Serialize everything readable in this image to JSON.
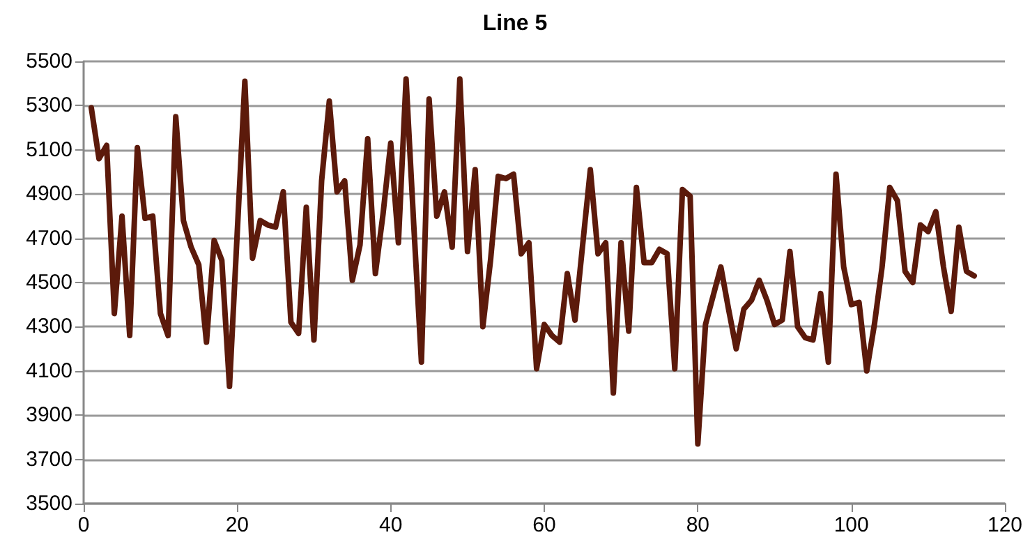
{
  "chart_data": {
    "type": "line",
    "title": "Line 5",
    "x": [
      1,
      2,
      3,
      4,
      5,
      6,
      7,
      8,
      9,
      10,
      11,
      12,
      13,
      14,
      15,
      16,
      17,
      18,
      19,
      20,
      21,
      22,
      23,
      24,
      25,
      26,
      27,
      28,
      29,
      30,
      31,
      32,
      33,
      34,
      35,
      36,
      37,
      38,
      39,
      40,
      41,
      42,
      43,
      44,
      45,
      46,
      47,
      48,
      49,
      50,
      51,
      52,
      53,
      54,
      55,
      56,
      57,
      58,
      59,
      60,
      61,
      62,
      63,
      64,
      65,
      66,
      67,
      68,
      69,
      70,
      71,
      72,
      73,
      74,
      75,
      76,
      77,
      78,
      79,
      80,
      81,
      82,
      83,
      84,
      85,
      86,
      87,
      88,
      89,
      90,
      91,
      92,
      93,
      94,
      95,
      96,
      97,
      98,
      99,
      100,
      101,
      102,
      103,
      104,
      105,
      106,
      107,
      108,
      109,
      110,
      111,
      112,
      113,
      114,
      115,
      116
    ],
    "series": [
      {
        "color": "#5c1a0b",
        "values": [
          5290,
          5060,
          5120,
          4360,
          4800,
          4260,
          5110,
          4790,
          4800,
          4360,
          4260,
          5250,
          4780,
          4660,
          4580,
          4230,
          4690,
          4600,
          4030,
          4720,
          5410,
          4610,
          4780,
          4760,
          4750,
          4910,
          4320,
          4270,
          4840,
          4240,
          4960,
          5320,
          4910,
          4960,
          4510,
          4670,
          5150,
          4540,
          4810,
          5130,
          4680,
          5420,
          4760,
          4140,
          5330,
          4800,
          4910,
          4660,
          5420,
          4640,
          5010,
          4300,
          4600,
          4980,
          4970,
          4990,
          4630,
          4680,
          4110,
          4310,
          4260,
          4230,
          4540,
          4330,
          4670,
          5010,
          4630,
          4680,
          4000,
          4680,
          4280,
          4930,
          4590,
          4590,
          4650,
          4630,
          4110,
          4920,
          4890,
          3770,
          4310,
          4440,
          4570,
          4380,
          4200,
          4380,
          4420,
          4510,
          4420,
          4310,
          4330,
          4640,
          4300,
          4250,
          4240,
          4450,
          4140,
          4990,
          4570,
          4400,
          4410,
          4100,
          4310,
          4570,
          4930,
          4870,
          4550,
          4500,
          4760,
          4730,
          4820,
          4570,
          4370,
          4750,
          4550,
          4530
        ]
      }
    ],
    "xlim": [
      0,
      120
    ],
    "xticks": [
      0,
      20,
      40,
      60,
      80,
      100,
      120
    ],
    "ylim": [
      3500,
      5500
    ],
    "yticks": [
      3500,
      3700,
      3900,
      4100,
      4300,
      4500,
      4700,
      4900,
      5100,
      5300,
      5500
    ],
    "grid": "y",
    "marker": "none",
    "line_style": "solid"
  }
}
